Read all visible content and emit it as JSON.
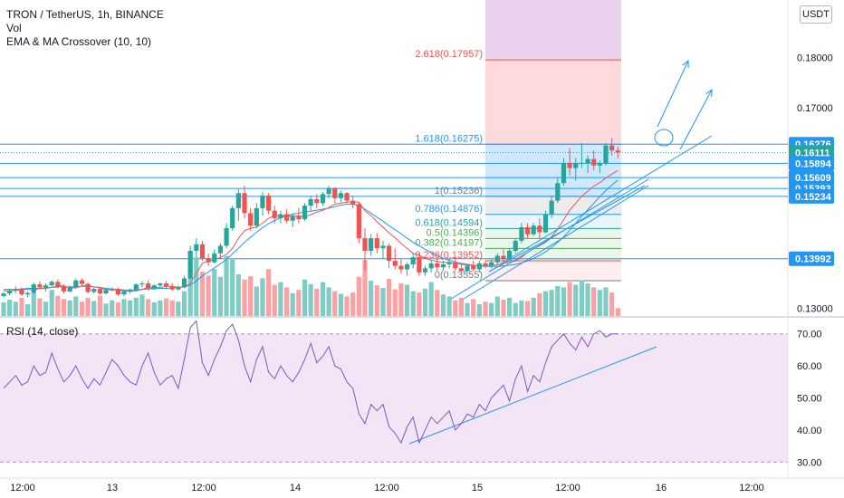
{
  "header": {
    "title": "TRON / TetherUS, 1h, BINANCE",
    "vol": "Vol",
    "indicator": "EMA & MA Crossover (10, 10)",
    "currency_button": "USDT"
  },
  "rsi": {
    "label": "RSI (14, close)"
  },
  "colors": {
    "up": "#26a69a",
    "down": "#ef5350",
    "ema": "#ef5350",
    "ma": "#2196f3",
    "drawing": "#2196f3",
    "rsi_line": "#7e57c2",
    "rsi_band": "#f3e5f5"
  },
  "price_axis": {
    "ticks": [
      "0.18000",
      "0.17000",
      "0.13000"
    ],
    "tags": [
      {
        "value": 0.16276,
        "label": "0.16276",
        "color": "#2196f3"
      },
      {
        "value": 0.16111,
        "label": "0.16111",
        "color": "#26a69a"
      },
      {
        "value": 0.15894,
        "label": "0.15894",
        "color": "#2196f3"
      },
      {
        "value": 0.15609,
        "label": "0.15609",
        "color": "#2196f3"
      },
      {
        "value": 0.15393,
        "label": "0.15393",
        "color": "#2196f3"
      },
      {
        "value": 0.15234,
        "label": "0.15234",
        "color": "#2196f3"
      },
      {
        "value": 0.13992,
        "label": "0.13992",
        "color": "#2196f3"
      }
    ]
  },
  "rsi_axis": {
    "ticks": [
      "70.00",
      "60.00",
      "50.00",
      "40.00",
      "30.00"
    ]
  },
  "time_axis": {
    "ticks": [
      "12:00",
      "13",
      "12:00",
      "14",
      "12:00",
      "15",
      "12:00",
      "16",
      "12:00"
    ]
  },
  "fib_levels": [
    {
      "label": "2.618(0.17957)",
      "value": 0.17957,
      "color": "#ef5350"
    },
    {
      "label": "1.618(0.16275)",
      "value": 0.16275,
      "color": "#2196f3"
    },
    {
      "label": "1(0.15236)",
      "value": 0.15236,
      "color": "#787b86"
    },
    {
      "label": "0.786(0.14876)",
      "value": 0.14876,
      "color": "#2196f3"
    },
    {
      "label": "0.618(0.14594)",
      "value": 0.14594,
      "color": "#26a69a"
    },
    {
      "label": "0.5(0.14396)",
      "value": 0.14396,
      "color": "#4caf50"
    },
    {
      "label": "0.382(0.14197)",
      "value": 0.14197,
      "color": "#4caf50"
    },
    {
      "label": "0.236(0.13952)",
      "value": 0.13952,
      "color": "#ef5350"
    },
    {
      "label": "0(0.13555)",
      "value": 0.13555,
      "color": "#787b86"
    }
  ],
  "horizontal_lines": [
    0.16276,
    0.15894,
    0.15609,
    0.15393,
    0.15234,
    0.13992
  ],
  "chart_data": {
    "type": "candlestick",
    "symbol": "TRON / TetherUS",
    "interval": "1h",
    "exchange": "BINANCE",
    "ylim": [
      0.1285,
      0.1915
    ],
    "rsi_ylim": [
      25,
      75
    ],
    "candles": [
      [
        0.1325,
        0.1332,
        0.1322,
        0.133
      ],
      [
        0.133,
        0.134,
        0.1326,
        0.1336
      ],
      [
        0.1336,
        0.1344,
        0.133,
        0.1338
      ],
      [
        0.1338,
        0.1342,
        0.1325,
        0.1328
      ],
      [
        0.1328,
        0.1334,
        0.1322,
        0.1331
      ],
      [
        0.1331,
        0.1352,
        0.1329,
        0.1348
      ],
      [
        0.1348,
        0.1354,
        0.1338,
        0.1342
      ],
      [
        0.1342,
        0.135,
        0.1334,
        0.1346
      ],
      [
        0.1346,
        0.1356,
        0.1344,
        0.1353
      ],
      [
        0.1353,
        0.1358,
        0.134,
        0.1344
      ],
      [
        0.1344,
        0.1348,
        0.133,
        0.1334
      ],
      [
        0.1334,
        0.1346,
        0.1332,
        0.1343
      ],
      [
        0.1343,
        0.136,
        0.1341,
        0.1356
      ],
      [
        0.1356,
        0.136,
        0.1346,
        0.1349
      ],
      [
        0.1349,
        0.1352,
        0.133,
        0.1333
      ],
      [
        0.1333,
        0.1341,
        0.133,
        0.1339
      ],
      [
        0.1339,
        0.1343,
        0.1327,
        0.133
      ],
      [
        0.133,
        0.134,
        0.1328,
        0.1337
      ],
      [
        0.1337,
        0.1342,
        0.1334,
        0.1339
      ],
      [
        0.1339,
        0.1342,
        0.1325,
        0.1328
      ],
      [
        0.1328,
        0.1336,
        0.1324,
        0.1334
      ],
      [
        0.1334,
        0.134,
        0.133,
        0.1337
      ],
      [
        0.1337,
        0.135,
        0.1335,
        0.1348
      ],
      [
        0.1348,
        0.1355,
        0.1342,
        0.135
      ],
      [
        0.135,
        0.1356,
        0.1336,
        0.134
      ],
      [
        0.134,
        0.1348,
        0.1338,
        0.1346
      ],
      [
        0.1346,
        0.1352,
        0.1343,
        0.135
      ],
      [
        0.135,
        0.1355,
        0.134,
        0.1344
      ],
      [
        0.1344,
        0.135,
        0.1335,
        0.1338
      ],
      [
        0.1338,
        0.1346,
        0.1336,
        0.1342
      ],
      [
        0.1342,
        0.1365,
        0.134,
        0.136
      ],
      [
        0.136,
        0.1425,
        0.1358,
        0.1415
      ],
      [
        0.1415,
        0.144,
        0.1402,
        0.1428
      ],
      [
        0.1428,
        0.1435,
        0.1395,
        0.14
      ],
      [
        0.14,
        0.141,
        0.1385,
        0.1392
      ],
      [
        0.1392,
        0.1418,
        0.139,
        0.141
      ],
      [
        0.141,
        0.143,
        0.1398,
        0.1425
      ],
      [
        0.1425,
        0.147,
        0.142,
        0.146
      ],
      [
        0.146,
        0.1505,
        0.1455,
        0.15
      ],
      [
        0.15,
        0.1538,
        0.1475,
        0.153
      ],
      [
        0.153,
        0.1545,
        0.148,
        0.149
      ],
      [
        0.149,
        0.15,
        0.1455,
        0.1465
      ],
      [
        0.1465,
        0.151,
        0.146,
        0.15
      ],
      [
        0.15,
        0.1532,
        0.1485,
        0.1525
      ],
      [
        0.1525,
        0.153,
        0.1488,
        0.1495
      ],
      [
        0.1495,
        0.1505,
        0.147,
        0.148
      ],
      [
        0.148,
        0.1495,
        0.147,
        0.1488
      ],
      [
        0.1488,
        0.1498,
        0.147,
        0.1475
      ],
      [
        0.1475,
        0.149,
        0.1462,
        0.1485
      ],
      [
        0.1485,
        0.15,
        0.147,
        0.1478
      ],
      [
        0.1478,
        0.151,
        0.1475,
        0.1505
      ],
      [
        0.1505,
        0.1525,
        0.1495,
        0.1518
      ],
      [
        0.1518,
        0.1528,
        0.15,
        0.151
      ],
      [
        0.151,
        0.1532,
        0.1505,
        0.1528
      ],
      [
        0.1528,
        0.1545,
        0.152,
        0.154
      ],
      [
        0.154,
        0.1542,
        0.151,
        0.152
      ],
      [
        0.152,
        0.1535,
        0.1512,
        0.153
      ],
      [
        0.153,
        0.1532,
        0.151,
        0.1515
      ],
      [
        0.1515,
        0.1525,
        0.15,
        0.1508
      ],
      [
        0.1508,
        0.1512,
        0.143,
        0.144
      ],
      [
        0.144,
        0.146,
        0.1375,
        0.1415
      ],
      [
        0.1415,
        0.1448,
        0.1405,
        0.144
      ],
      [
        0.144,
        0.145,
        0.141,
        0.142
      ],
      [
        0.142,
        0.1435,
        0.14,
        0.1425
      ],
      [
        0.1425,
        0.143,
        0.138,
        0.1395
      ],
      [
        0.1395,
        0.142,
        0.1378,
        0.1385
      ],
      [
        0.1385,
        0.1398,
        0.137,
        0.1378
      ],
      [
        0.1378,
        0.1392,
        0.1365,
        0.1388
      ],
      [
        0.1388,
        0.141,
        0.138,
        0.1402
      ],
      [
        0.1402,
        0.141,
        0.1365,
        0.1372
      ],
      [
        0.1372,
        0.1385,
        0.1365,
        0.138
      ],
      [
        0.138,
        0.1395,
        0.1372,
        0.139
      ],
      [
        0.139,
        0.14,
        0.1375,
        0.1382
      ],
      [
        0.1382,
        0.1395,
        0.1375,
        0.1388
      ],
      [
        0.1388,
        0.14,
        0.138,
        0.1392
      ],
      [
        0.1392,
        0.1402,
        0.1375,
        0.138
      ],
      [
        0.138,
        0.139,
        0.137,
        0.1375
      ],
      [
        0.1375,
        0.1388,
        0.137,
        0.1385
      ],
      [
        0.1385,
        0.1395,
        0.1375,
        0.1378
      ],
      [
        0.1378,
        0.1395,
        0.1372,
        0.139
      ],
      [
        0.139,
        0.1395,
        0.138,
        0.1385
      ],
      [
        0.1385,
        0.1398,
        0.138,
        0.1392
      ],
      [
        0.1392,
        0.141,
        0.1388,
        0.1405
      ],
      [
        0.1405,
        0.1418,
        0.1392,
        0.1398
      ],
      [
        0.1398,
        0.142,
        0.1395,
        0.1415
      ],
      [
        0.1415,
        0.144,
        0.141,
        0.1435
      ],
      [
        0.1435,
        0.147,
        0.143,
        0.1462
      ],
      [
        0.1462,
        0.147,
        0.144,
        0.1448
      ],
      [
        0.1448,
        0.147,
        0.1445,
        0.1465
      ],
      [
        0.1465,
        0.148,
        0.144,
        0.1452
      ],
      [
        0.1452,
        0.1495,
        0.145,
        0.1488
      ],
      [
        0.1488,
        0.1525,
        0.148,
        0.1515
      ],
      [
        0.1515,
        0.156,
        0.151,
        0.155
      ],
      [
        0.155,
        0.16,
        0.1545,
        0.159
      ],
      [
        0.159,
        0.162,
        0.1565,
        0.158
      ],
      [
        0.158,
        0.16,
        0.1555,
        0.159
      ],
      [
        0.159,
        0.163,
        0.158,
        0.159
      ],
      [
        0.159,
        0.1605,
        0.157,
        0.1598
      ],
      [
        0.1598,
        0.1615,
        0.1575,
        0.1585
      ],
      [
        0.1585,
        0.1595,
        0.157,
        0.159
      ],
      [
        0.159,
        0.163,
        0.1585,
        0.1625
      ],
      [
        0.1625,
        0.164,
        0.1605,
        0.1615
      ],
      [
        0.1615,
        0.1622,
        0.16,
        0.1611
      ]
    ],
    "volume": [
      21,
      25,
      22,
      28,
      18,
      35,
      27,
      22,
      40,
      31,
      26,
      24,
      30,
      22,
      28,
      23,
      31,
      19,
      24,
      21,
      26,
      24,
      28,
      33,
      26,
      21,
      24,
      27,
      24,
      22,
      38,
      78,
      90,
      68,
      62,
      72,
      60,
      92,
      88,
      64,
      56,
      61,
      45,
      58,
      72,
      48,
      52,
      44,
      35,
      40,
      56,
      49,
      42,
      52,
      44,
      38,
      34,
      30,
      36,
      60,
      86,
      54,
      47,
      43,
      57,
      41,
      50,
      48,
      38,
      36,
      42,
      52,
      40,
      33,
      30,
      24,
      28,
      20,
      26,
      18,
      22,
      20,
      30,
      25,
      28,
      20,
      24,
      23,
      28,
      35,
      38,
      40,
      46,
      44,
      52,
      48,
      55,
      50,
      44,
      40,
      44,
      36,
      12
    ],
    "ema": [
      0.1335,
      0.1335,
      0.1336,
      0.1338,
      0.1338,
      0.1337,
      0.134,
      0.134,
      0.1342,
      0.1345,
      0.1345,
      0.1341,
      0.1341,
      0.1345,
      0.1346,
      0.1343,
      0.1341,
      0.1338,
      0.1337,
      0.1337,
      0.1335,
      0.1334,
      0.1335,
      0.1338,
      0.1342,
      0.1341,
      0.1342,
      0.1344,
      0.1344,
      0.1342,
      0.1343,
      0.135,
      0.137,
      0.139,
      0.1395,
      0.1397,
      0.1402,
      0.1408,
      0.142,
      0.144,
      0.1455,
      0.146,
      0.1462,
      0.147,
      0.148,
      0.1485,
      0.1485,
      0.1485,
      0.1484,
      0.1484,
      0.1483,
      0.1487,
      0.1492,
      0.1496,
      0.1501,
      0.1508,
      0.151,
      0.1512,
      0.1513,
      0.1512,
      0.1495,
      0.1485,
      0.1473,
      0.1462,
      0.1451,
      0.1441,
      0.143,
      0.142,
      0.141,
      0.1406,
      0.14,
      0.1396,
      0.1394,
      0.1392,
      0.1392,
      0.139,
      0.1388,
      0.1386,
      0.1386,
      0.1385,
      0.1386,
      0.1386,
      0.1387,
      0.139,
      0.1392,
      0.1395,
      0.1402,
      0.1412,
      0.1419,
      0.1425,
      0.1432,
      0.1443,
      0.1458,
      0.1477,
      0.1496,
      0.151,
      0.1524,
      0.1534,
      0.1544,
      0.1551,
      0.156,
      0.1568,
      0.1575
    ],
    "ma": [
      0.1338,
      0.1338,
      0.1338,
      0.1339,
      0.134,
      0.134,
      0.134,
      0.1341,
      0.1342,
      0.1343,
      0.1343,
      0.1343,
      0.1343,
      0.1344,
      0.1344,
      0.1343,
      0.1342,
      0.134,
      0.1339,
      0.1338,
      0.1337,
      0.1337,
      0.1337,
      0.1338,
      0.1339,
      0.1339,
      0.134,
      0.134,
      0.1341,
      0.1342,
      0.1343,
      0.1347,
      0.1355,
      0.1365,
      0.1373,
      0.1381,
      0.1389,
      0.1398,
      0.1409,
      0.142,
      0.1432,
      0.1442,
      0.1452,
      0.1461,
      0.1469,
      0.1475,
      0.1481,
      0.1485,
      0.1488,
      0.149,
      0.1492,
      0.1494,
      0.1496,
      0.1498,
      0.15,
      0.1503,
      0.1506,
      0.1508,
      0.1508,
      0.1505,
      0.1498,
      0.149,
      0.1482,
      0.1474,
      0.1465,
      0.1457,
      0.1449,
      0.144,
      0.1432,
      0.1425,
      0.1418,
      0.1411,
      0.1405,
      0.14,
      0.1396,
      0.1393,
      0.139,
      0.1388,
      0.1386,
      0.1385,
      0.1384,
      0.1384,
      0.1384,
      0.1385,
      0.1386,
      0.1388,
      0.1391,
      0.1395,
      0.14,
      0.1406,
      0.1413,
      0.1422,
      0.1432,
      0.1443,
      0.1456,
      0.147,
      0.1484,
      0.1497,
      0.151,
      0.1523,
      0.1535,
      0.1546,
      0.1556
    ],
    "rsi": [
      53,
      55,
      57,
      54,
      55,
      60,
      57,
      58,
      64,
      59,
      55,
      57,
      60,
      56,
      53,
      56,
      54,
      58,
      62,
      60,
      57,
      55,
      54,
      60,
      64,
      58,
      54,
      56,
      57,
      53,
      62,
      72,
      74,
      61,
      57,
      62,
      66,
      71,
      73,
      68,
      60,
      55,
      62,
      66,
      58,
      56,
      60,
      57,
      55,
      58,
      62,
      67,
      61,
      63,
      66,
      60,
      59,
      55,
      53,
      45,
      42,
      48,
      46,
      48,
      41,
      39,
      36,
      41,
      44,
      36,
      40,
      44,
      42,
      44,
      46,
      40,
      42,
      45,
      44,
      48,
      46,
      50,
      52,
      54,
      49,
      56,
      60,
      52,
      57,
      55,
      61,
      66,
      68,
      70,
      67,
      65,
      69,
      66,
      70,
      71,
      69,
      70,
      70
    ]
  }
}
